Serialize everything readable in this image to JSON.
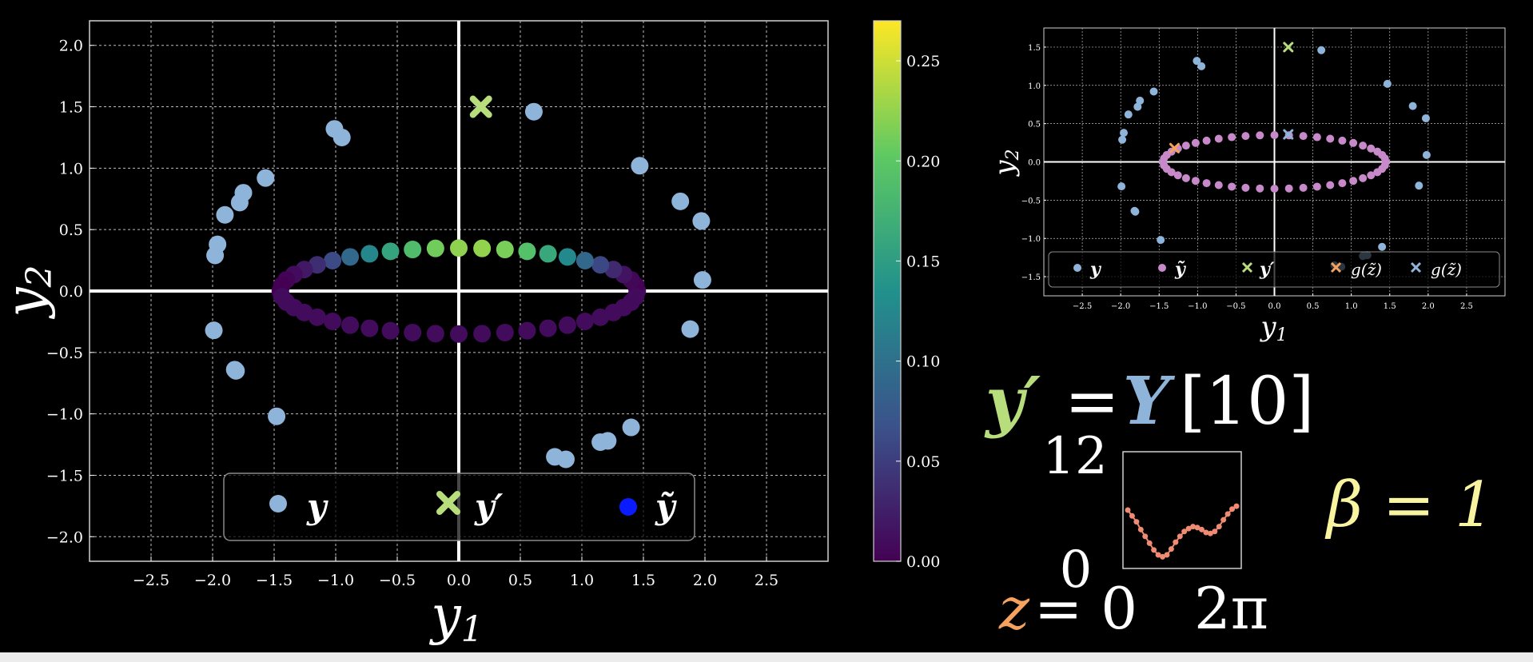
{
  "colors": {
    "background": "#000000",
    "y": "#8fb4d9",
    "y_prime": "#b7dd7c",
    "y_tilde_legend": "#0a1cff",
    "y_tilde_small": "#c789c9",
    "g_z_orange": "#f6a25e",
    "g_z_blue": "#8fb4d9",
    "z_text": "#f6a25e",
    "beta_text": "#f8f4a0",
    "curve": "#f08b73"
  },
  "icons": {
    "y_prime_marker": "x-marker-icon"
  },
  "chart_data": [
    {
      "type": "scatter",
      "xlabel": "y1",
      "ylabel": "y2",
      "xlim": [
        -3.0,
        3.0
      ],
      "ylim": [
        -2.2,
        2.2
      ],
      "xticks": [
        -2.5,
        -2.0,
        -1.5,
        -1.0,
        -0.5,
        0.0,
        0.5,
        1.0,
        1.5,
        2.0,
        2.5
      ],
      "xtick_labels": [
        "−2.5",
        "−2.0",
        "−1.5",
        "−1.0",
        "−0.5",
        "0.0",
        "0.5",
        "1.0",
        "1.5",
        "2.0",
        "2.5"
      ],
      "yticks": [
        -2.0,
        -1.5,
        -1.0,
        -0.5,
        0.0,
        0.5,
        1.0,
        1.5,
        2.0
      ],
      "ytick_labels": [
        "−2.0",
        "−1.5",
        "−1.0",
        "−0.5",
        "0.0",
        "0.5",
        "1.0",
        "1.5",
        "2.0"
      ],
      "grid": true,
      "legend_position": "lower-center",
      "legend": [
        "y",
        "y′",
        "ỹ"
      ],
      "colorbar": {
        "colormap": "viridis",
        "range": [
          0.0,
          0.27
        ],
        "ticks": [
          0.0,
          0.05,
          0.1,
          0.15,
          0.2,
          0.25
        ],
        "tick_labels": [
          "0.00",
          "0.05",
          "0.10",
          "0.15",
          "0.20",
          "0.25"
        ]
      },
      "series": [
        {
          "name": "y",
          "points": [
            [
              -1.98,
              0.29
            ],
            [
              -1.96,
              0.38
            ],
            [
              -1.99,
              -0.32
            ],
            [
              -1.82,
              -0.64
            ],
            [
              -1.81,
              -0.65
            ],
            [
              -1.9,
              0.62
            ],
            [
              -1.78,
              0.72
            ],
            [
              -1.75,
              0.8
            ],
            [
              -1.57,
              0.92
            ],
            [
              -1.48,
              -1.02
            ],
            [
              -1.01,
              1.32
            ],
            [
              -0.95,
              1.25
            ],
            [
              0.61,
              1.46
            ],
            [
              1.47,
              1.02
            ],
            [
              1.8,
              0.73
            ],
            [
              1.97,
              0.57
            ],
            [
              1.98,
              0.09
            ],
            [
              1.88,
              -0.31
            ],
            [
              1.4,
              -1.11
            ],
            [
              1.21,
              -1.22
            ],
            [
              1.15,
              -1.23
            ],
            [
              0.78,
              -1.35
            ],
            [
              0.87,
              -1.37
            ]
          ]
        },
        {
          "name": "y′",
          "points": [
            [
              0.18,
              1.5
            ]
          ]
        },
        {
          "name": "ỹ",
          "ellipse": {
            "rx": 1.45,
            "ry": 0.35,
            "n": 48
          },
          "color_value_range": [
            0.0,
            0.27
          ]
        }
      ]
    },
    {
      "type": "scatter",
      "xlabel": "y1",
      "ylabel": "y2",
      "xlim": [
        -3.0,
        3.0
      ],
      "ylim": [
        -1.75,
        1.75
      ],
      "xticks": [
        -2.5,
        -2.0,
        -1.5,
        -1.0,
        -0.5,
        0.0,
        0.5,
        1.0,
        1.5,
        2.0,
        2.5
      ],
      "xtick_labels": [
        "−2.5",
        "−2.0",
        "−1.5",
        "−1.0",
        "−0.5",
        "0.0",
        "0.5",
        "1.0",
        "1.5",
        "2.0",
        "2.5"
      ],
      "yticks": [
        -1.5,
        -1.0,
        -0.5,
        0.0,
        0.5,
        1.0,
        1.5
      ],
      "ytick_labels": [
        "−1.5",
        "−1.0",
        "−0.5",
        "0.0",
        "0.5",
        "1.0",
        "1.5"
      ],
      "grid": true,
      "legend_position": "bottom",
      "legend": [
        "y",
        "ỹ",
        "y′",
        "g(z̃)",
        "g(z̃)"
      ],
      "series": [
        {
          "name": "y",
          "points": [
            [
              -1.98,
              0.29
            ],
            [
              -1.96,
              0.38
            ],
            [
              -1.99,
              -0.32
            ],
            [
              -1.82,
              -0.64
            ],
            [
              -1.81,
              -0.65
            ],
            [
              -1.9,
              0.62
            ],
            [
              -1.78,
              0.72
            ],
            [
              -1.75,
              0.8
            ],
            [
              -1.57,
              0.92
            ],
            [
              -1.48,
              -1.02
            ],
            [
              -1.01,
              1.32
            ],
            [
              -0.95,
              1.25
            ],
            [
              0.61,
              1.46
            ],
            [
              1.47,
              1.02
            ],
            [
              1.8,
              0.73
            ],
            [
              1.97,
              0.57
            ],
            [
              1.98,
              0.09
            ],
            [
              1.88,
              -0.31
            ],
            [
              1.4,
              -1.11
            ],
            [
              1.21,
              -1.22
            ],
            [
              1.15,
              -1.23
            ],
            [
              0.78,
              -1.35
            ],
            [
              0.87,
              -1.37
            ]
          ]
        },
        {
          "name": "ỹ",
          "ellipse": {
            "rx": 1.45,
            "ry": 0.35,
            "n": 48
          }
        },
        {
          "name": "y′",
          "points": [
            [
              0.18,
              1.5
            ]
          ]
        },
        {
          "name": "g(z̃)",
          "points": [
            [
              -1.3,
              0.18
            ]
          ]
        },
        {
          "name": "g(z̃)",
          "points": [
            [
              0.18,
              0.36
            ]
          ]
        }
      ]
    },
    {
      "type": "line",
      "ylim": [
        0,
        12
      ],
      "ytick_labels": [
        "12",
        "0"
      ],
      "xlabels": [
        "z = 0",
        "2π"
      ],
      "values": [
        6.0,
        5.4,
        4.8,
        4.0,
        3.3,
        2.6,
        1.9,
        1.4,
        1.2,
        1.4,
        2.0,
        2.7,
        3.3,
        3.8,
        4.1,
        4.3,
        4.2,
        4.0,
        3.7,
        3.6,
        3.8,
        4.3,
        5.0,
        5.6,
        6.1,
        6.4
      ]
    }
  ],
  "formulas": {
    "y_prime": "y′",
    "equals": "=",
    "Y": "Y",
    "index": "[10]",
    "beta": "β = 1",
    "z_label": "z",
    "z_rest": "= 0",
    "two_pi": "2π"
  }
}
